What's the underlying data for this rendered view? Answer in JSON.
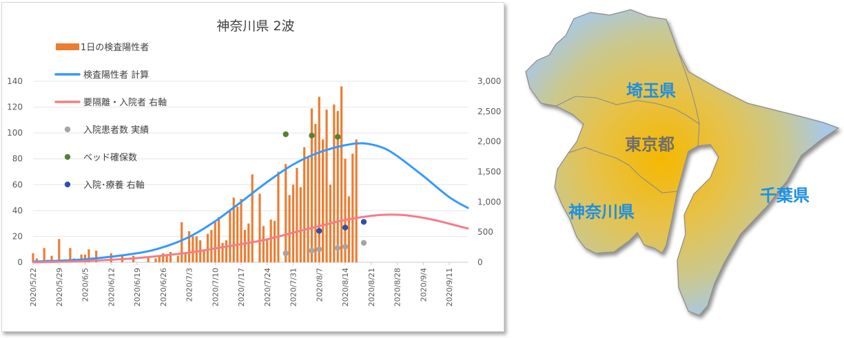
{
  "chart_data": {
    "type": "bar",
    "title": "神奈川県 2波",
    "xlabel": "",
    "ylabel": "",
    "left_axis": {
      "ylim": [
        0,
        140
      ],
      "ticks": [
        0,
        20,
        40,
        60,
        80,
        100,
        120,
        140
      ]
    },
    "right_axis": {
      "ylim": [
        0,
        3000
      ],
      "ticks": [
        "0",
        "500",
        "1,000",
        "1,500",
        "2,000",
        "2,500",
        "3,000"
      ],
      "tick_values": [
        0,
        500,
        1000,
        1500,
        2000,
        2500,
        3000
      ]
    },
    "x_start": "2020/5/22",
    "x_end": "2020/9/16",
    "x_tick_labels": [
      "2020/5/22",
      "2020/5/29",
      "2020/6/5",
      "2020/6/12",
      "2020/6/19",
      "2020/6/26",
      "2020/7/3",
      "2020/7/10",
      "2020/7/17",
      "2020/7/24",
      "2020/7/31",
      "2020/8/7",
      "2020/8/14",
      "2020/8/21",
      "2020/8/28",
      "2020/9/4",
      "2020/9/11"
    ],
    "grid": true,
    "legend_position": "top-left",
    "series": [
      {
        "name": "1日の検査陽性者",
        "kind": "bar",
        "axis": "left",
        "color": "#ED7D31",
        "x": [
          "2020/5/22",
          "2020/5/23",
          "2020/5/25",
          "2020/5/26",
          "2020/5/27",
          "2020/5/29",
          "2020/6/1",
          "2020/6/2",
          "2020/6/4",
          "2020/6/5",
          "2020/6/6",
          "2020/6/8",
          "2020/6/12",
          "2020/6/15",
          "2020/6/18",
          "2020/6/22",
          "2020/6/24",
          "2020/6/25",
          "2020/6/26",
          "2020/6/27",
          "2020/6/28",
          "2020/6/30",
          "2020/7/1",
          "2020/7/2",
          "2020/7/3",
          "2020/7/4",
          "2020/7/5",
          "2020/7/6",
          "2020/7/7",
          "2020/7/8",
          "2020/7/9",
          "2020/7/10",
          "2020/7/11",
          "2020/7/12",
          "2020/7/13",
          "2020/7/14",
          "2020/7/15",
          "2020/7/16",
          "2020/7/17",
          "2020/7/18",
          "2020/7/19",
          "2020/7/20",
          "2020/7/22",
          "2020/7/23",
          "2020/7/24",
          "2020/7/25",
          "2020/7/26",
          "2020/7/27",
          "2020/7/29",
          "2020/7/30",
          "2020/7/31",
          "2020/8/1",
          "2020/8/2",
          "2020/8/3",
          "2020/8/4",
          "2020/8/5",
          "2020/8/6",
          "2020/8/7",
          "2020/8/8",
          "2020/8/9",
          "2020/8/10",
          "2020/8/11",
          "2020/8/12",
          "2020/8/13",
          "2020/8/14",
          "2020/8/15",
          "2020/8/16",
          "2020/8/17",
          "2020/8/18",
          "2020/8/19"
        ],
        "values": [
          7,
          3,
          11,
          2,
          5,
          18,
          11,
          3,
          6,
          6,
          10,
          9,
          7,
          6,
          5,
          4,
          3,
          5,
          7,
          5,
          8,
          5,
          31,
          7,
          24,
          20,
          20,
          17,
          10,
          22,
          25,
          31,
          35,
          15,
          17,
          40,
          50,
          43,
          49,
          25,
          30,
          68,
          53,
          28,
          18,
          33,
          32,
          70,
          76,
          52,
          60,
          73,
          58,
          89,
          81,
          119,
          107,
          128,
          95,
          118,
          60,
          122,
          117,
          136,
          80,
          51,
          84,
          95,
          0,
          0
        ]
      },
      {
        "name": "検査陽性者 計算",
        "kind": "line",
        "axis": "right",
        "color": "#3399FF",
        "x": [
          "2020/5/22",
          "2020/6/5",
          "2020/6/19",
          "2020/6/26",
          "2020/7/3",
          "2020/7/10",
          "2020/7/17",
          "2020/7/24",
          "2020/7/31",
          "2020/8/7",
          "2020/8/14",
          "2020/8/19",
          "2020/8/24",
          "2020/8/28",
          "2020/9/4",
          "2020/9/11",
          "2020/9/16"
        ],
        "values": [
          10,
          50,
          150,
          250,
          420,
          680,
          1000,
          1330,
          1620,
          1820,
          1940,
          1970,
          1900,
          1760,
          1430,
          1080,
          900
        ]
      },
      {
        "name": "要隔離・入院者 右軸",
        "kind": "line",
        "axis": "right",
        "color": "#F47C86",
        "x": [
          "2020/5/22",
          "2020/6/5",
          "2020/6/19",
          "2020/7/3",
          "2020/7/10",
          "2020/7/17",
          "2020/7/24",
          "2020/7/31",
          "2020/8/7",
          "2020/8/14",
          "2020/8/21",
          "2020/8/26",
          "2020/8/31",
          "2020/9/7",
          "2020/9/16"
        ],
        "values": [
          0,
          20,
          70,
          160,
          230,
          300,
          380,
          490,
          600,
          700,
          770,
          790,
          775,
          700,
          560
        ]
      },
      {
        "name": "入院患者数 実績",
        "kind": "scatter",
        "axis": "left",
        "color": "#A5A5A5",
        "x": [
          "2020/7/29",
          "2020/8/5",
          "2020/8/7",
          "2020/8/12",
          "2020/8/14",
          "2020/8/19"
        ],
        "values": [
          7,
          9,
          10,
          11,
          12,
          15
        ]
      },
      {
        "name": "ベッド確保数",
        "kind": "scatter",
        "axis": "left",
        "color": "#548235",
        "x": [
          "2020/7/29",
          "2020/8/5",
          "2020/8/12"
        ],
        "values": [
          99,
          98,
          97
        ]
      },
      {
        "name": "入院･療養 右軸",
        "kind": "scatter",
        "axis": "right",
        "color": "#3050A8",
        "x": [
          "2020/8/7",
          "2020/8/14",
          "2020/8/19"
        ],
        "values": [
          520,
          575,
          670
        ]
      }
    ]
  },
  "map": {
    "labels": {
      "saitama": "埼玉県",
      "tokyo": "東京都",
      "kanagawa": "神奈川県",
      "chiba": "千葉県"
    },
    "colors": {
      "outer": "#A9C8E6",
      "mid": "#E3C15A",
      "center": "#F5B800",
      "label_blue": "#1E8FE0",
      "label_gray": "#6E6E6E"
    }
  }
}
